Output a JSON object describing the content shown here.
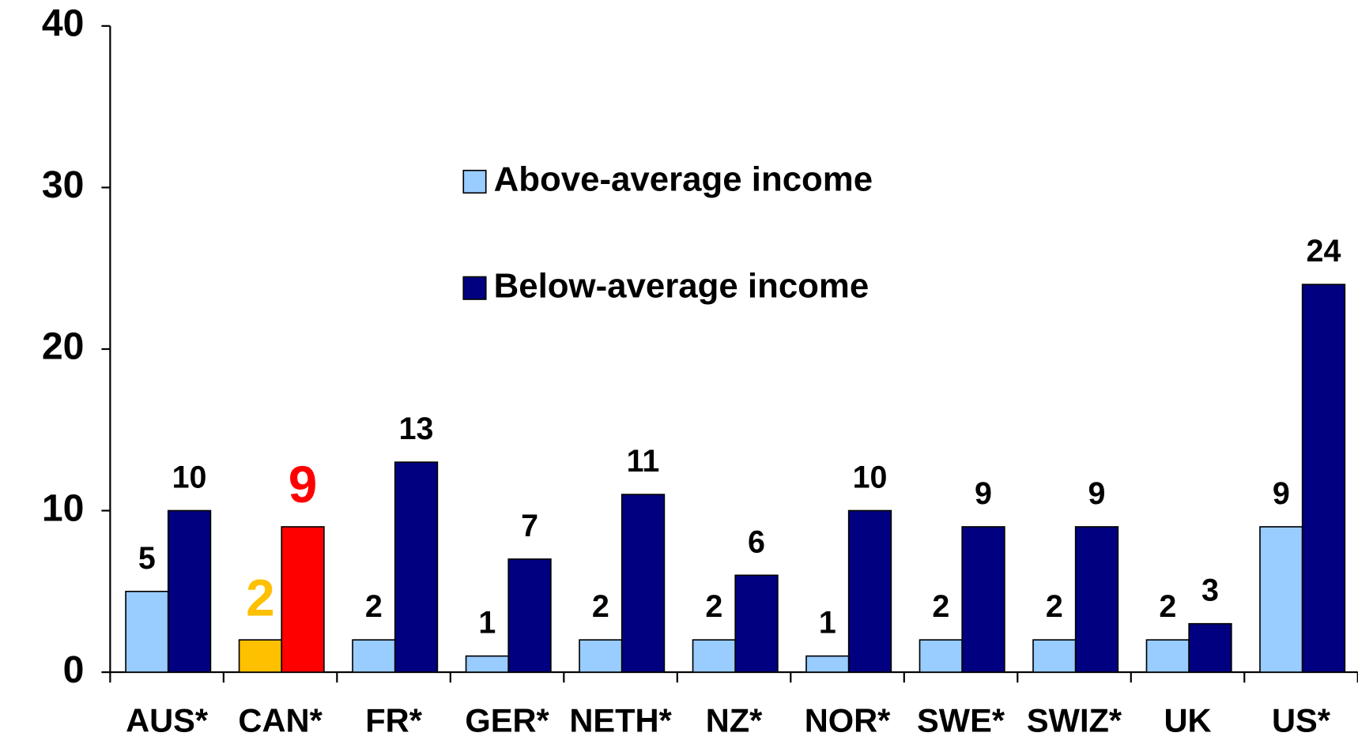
{
  "chart_data": {
    "type": "bar",
    "categories": [
      "AUS*",
      "CAN*",
      "FR*",
      "GER*",
      "NETH*",
      "NZ*",
      "NOR*",
      "SWE*",
      "SWIZ*",
      "UK",
      "US*"
    ],
    "series": [
      {
        "name": "Above-average income",
        "color": "#99ccff",
        "colors": [
          "#99ccff",
          "#ffc000",
          "#99ccff",
          "#99ccff",
          "#99ccff",
          "#99ccff",
          "#99ccff",
          "#99ccff",
          "#99ccff",
          "#99ccff",
          "#99ccff"
        ],
        "label_colors": [
          "#000000",
          "#ffc000",
          "#000000",
          "#000000",
          "#000000",
          "#000000",
          "#000000",
          "#000000",
          "#000000",
          "#000000",
          "#000000"
        ],
        "values": [
          5,
          2,
          2,
          1,
          2,
          2,
          1,
          2,
          2,
          2,
          9
        ]
      },
      {
        "name": "Below-average income",
        "color": "#000080",
        "colors": [
          "#000080",
          "#ff0000",
          "#000080",
          "#000080",
          "#000080",
          "#000080",
          "#000080",
          "#000080",
          "#000080",
          "#000080",
          "#000080"
        ],
        "label_colors": [
          "#000000",
          "#ff0000",
          "#000000",
          "#000000",
          "#000000",
          "#000000",
          "#000000",
          "#000000",
          "#000000",
          "#000000",
          "#000000"
        ],
        "values": [
          10,
          9,
          13,
          7,
          11,
          6,
          10,
          9,
          9,
          3,
          24
        ]
      }
    ],
    "ylim": [
      0,
      40
    ],
    "yticks": [
      0,
      10,
      20,
      30,
      40
    ],
    "grid": false
  }
}
